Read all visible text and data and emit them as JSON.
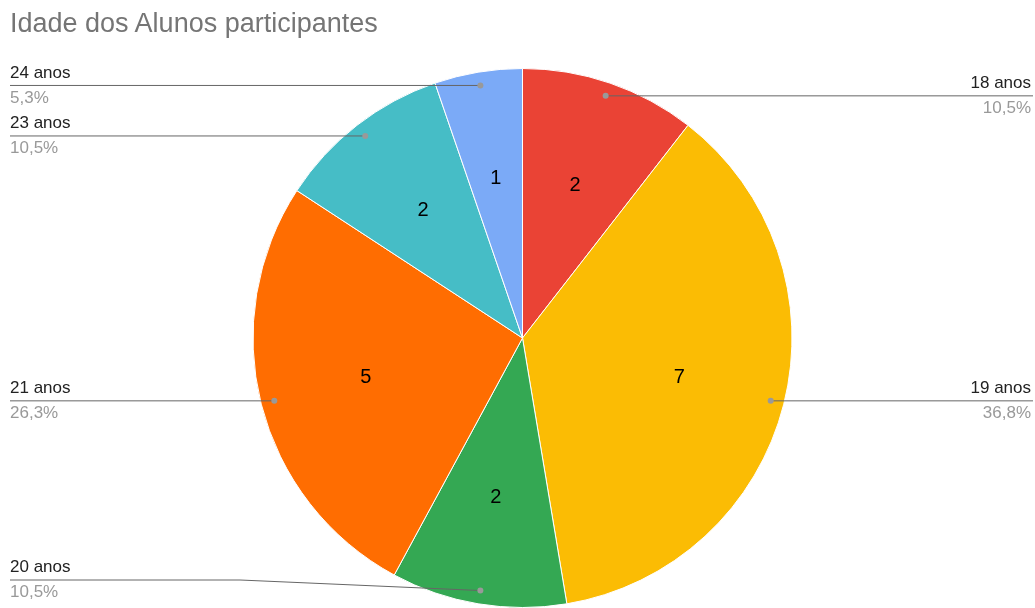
{
  "chart_data": {
    "type": "pie",
    "title": "Idade dos Alunos participantes",
    "categories": [
      "18 anos",
      "19 anos",
      "20 anos",
      "21 anos",
      "23 anos",
      "24 anos"
    ],
    "values": [
      2,
      7,
      2,
      5,
      2,
      1
    ],
    "colors": [
      "#ea4335",
      "#fbbc04",
      "#34a853",
      "#ff6d01",
      "#46bdc6",
      "#7baaf7"
    ],
    "data_labels": true,
    "annotations": [
      {
        "text": "10,5%",
        "x": "18 anos"
      },
      {
        "text": "36,8%",
        "x": "19 anos"
      },
      {
        "text": "10,5%",
        "x": "20 anos"
      },
      {
        "text": "26,3%",
        "x": "21 anos"
      },
      {
        "text": "10,5%",
        "x": "23 anos"
      },
      {
        "text": "5,3%",
        "x": "24 anos"
      }
    ],
    "legend": false
  }
}
